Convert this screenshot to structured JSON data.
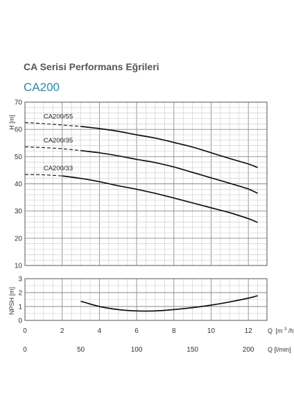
{
  "header": {
    "title": "CA Serisi Performans Eğrileri",
    "model": "CA200"
  },
  "colors": {
    "curve": "#111111",
    "grid_major": "#8a8a8a",
    "grid_minor": "#c8c8c8",
    "model_title": "#2a8aa5"
  },
  "chart_data": [
    {
      "type": "line",
      "name": "head",
      "ylabel": "H [m]",
      "ylim": [
        10,
        70
      ],
      "xlim": [
        0,
        13
      ],
      "x_unit": "m3/h",
      "yticks": [
        10,
        20,
        30,
        40,
        50,
        60,
        70
      ],
      "grid": true,
      "series": [
        {
          "name": "CA200/55",
          "dashed": {
            "x": [
              0,
              1,
              2,
              3
            ],
            "y": [
              62.5,
              62.1,
              61.6,
              61.1
            ]
          },
          "x": [
            3,
            4,
            5,
            6,
            7,
            8,
            9,
            10,
            11,
            12,
            12.5
          ],
          "y": [
            61.1,
            60.3,
            59.3,
            58.0,
            56.8,
            55.2,
            53.5,
            51.4,
            49.3,
            47.3,
            46.0
          ]
        },
        {
          "name": "CA200/35",
          "dashed": {
            "x": [
              0,
              1,
              2,
              3
            ],
            "y": [
              53.6,
              53.3,
              52.9,
              52.2
            ]
          },
          "x": [
            3,
            4,
            5,
            6,
            7,
            8,
            9,
            10,
            11,
            12,
            12.5
          ],
          "y": [
            52.2,
            51.4,
            50.3,
            49.0,
            47.8,
            46.2,
            44.2,
            42.2,
            40.2,
            38.1,
            36.5
          ]
        },
        {
          "name": "CA200/33",
          "dashed": {
            "x": [
              0,
              1,
              2
            ],
            "y": [
              43.4,
              43.3,
              42.9
            ]
          },
          "x": [
            2,
            3,
            4,
            5,
            6,
            7,
            8,
            9,
            10,
            11,
            12,
            12.5
          ],
          "y": [
            42.9,
            42.0,
            40.8,
            39.3,
            38.0,
            36.5,
            34.8,
            33.0,
            31.2,
            29.4,
            27.2,
            25.8
          ]
        }
      ]
    },
    {
      "type": "line",
      "name": "npsh",
      "ylabel": "NPSH [m]",
      "ylim": [
        0,
        3
      ],
      "xlim": [
        0,
        13
      ],
      "yticks": [
        0,
        1,
        2,
        3
      ],
      "grid": true,
      "series": [
        {
          "x": [
            3,
            4,
            5,
            6,
            7,
            8,
            9,
            10,
            11,
            12,
            12.5
          ],
          "y": [
            1.38,
            1.0,
            0.78,
            0.68,
            0.68,
            0.78,
            0.92,
            1.1,
            1.33,
            1.6,
            1.78
          ]
        }
      ]
    }
  ],
  "axes": {
    "x_primary": {
      "label_prefix": "Q",
      "label_unit_pre": "[m",
      "label_sup": "3",
      "label_unit_post": "/h]",
      "ticks": [
        0,
        2,
        4,
        6,
        8,
        10,
        12
      ]
    },
    "x_secondary": {
      "label": "Q [l/min]",
      "ticks": [
        0,
        50,
        100,
        150,
        200
      ]
    }
  }
}
